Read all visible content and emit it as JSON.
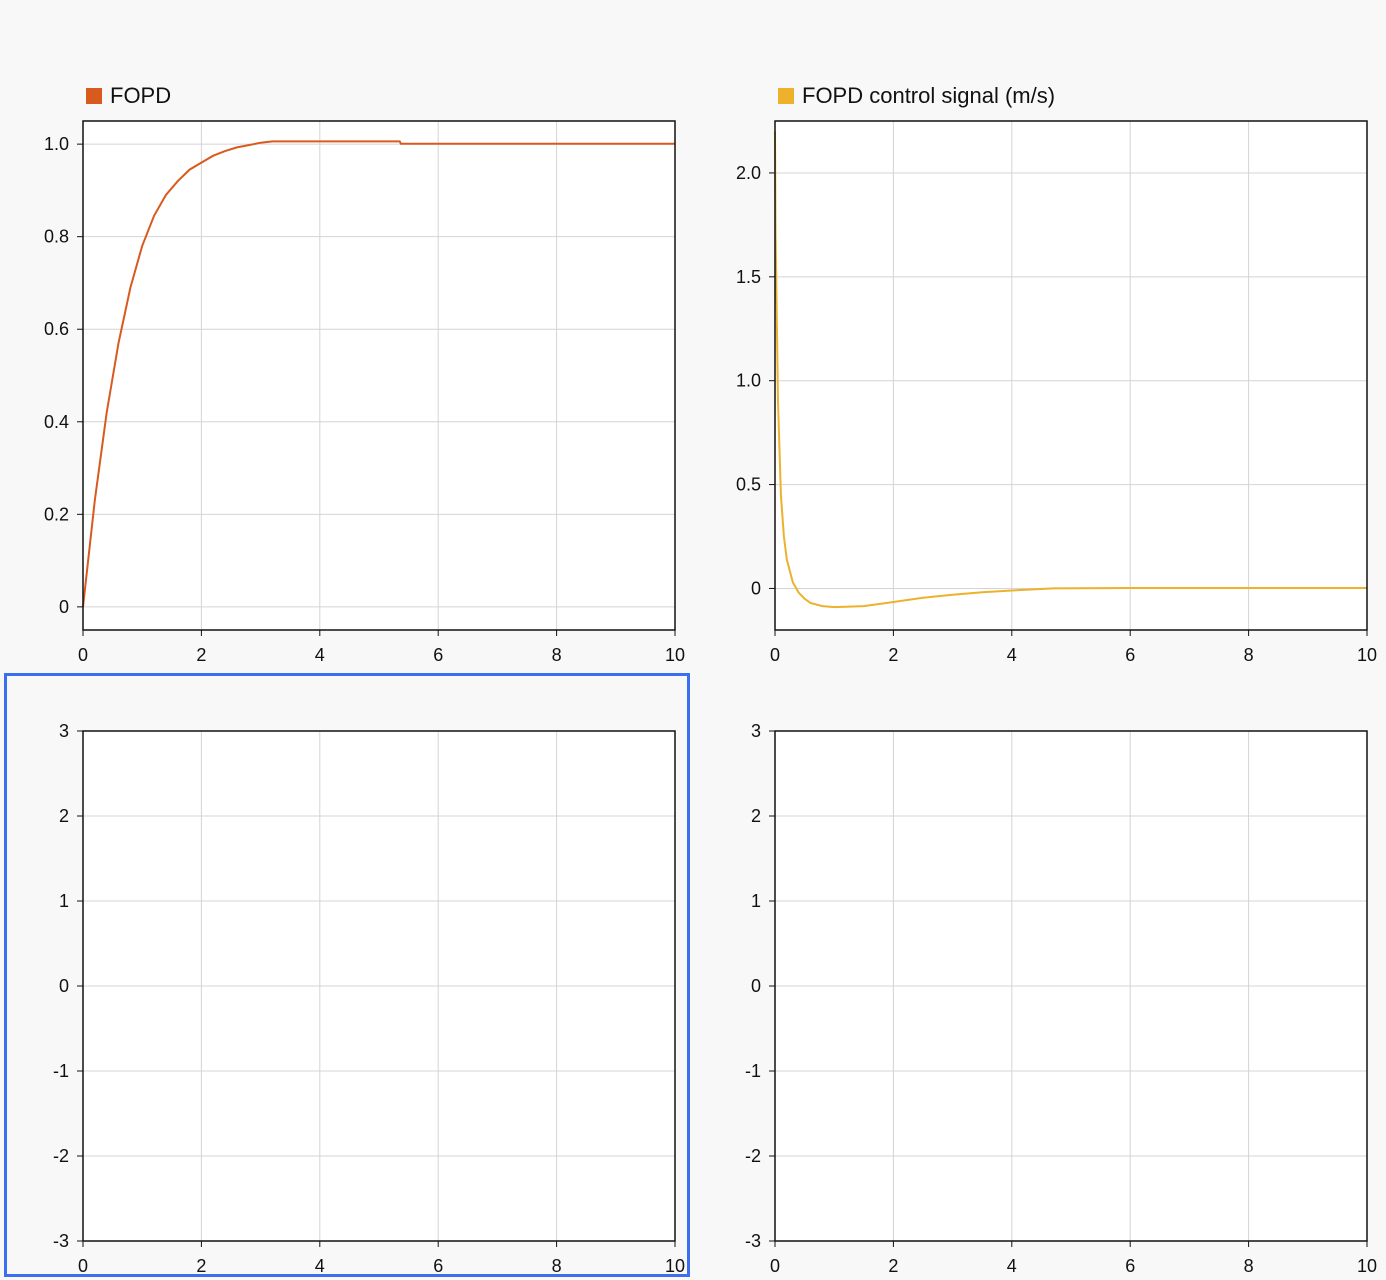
{
  "colors": {
    "background": "#f8f8f8",
    "grid": "#d4d4d4",
    "axis": "#111111",
    "selection": "#3b6ff0"
  },
  "chart_data": [
    {
      "type": "line",
      "title": "",
      "legend": [
        {
          "name": "FOPD",
          "color": "#d95a1e"
        }
      ],
      "xlim": [
        0,
        10
      ],
      "ylim": [
        -0.05,
        1.05
      ],
      "xticks": [
        0,
        2,
        4,
        6,
        8,
        10
      ],
      "xtick_labels": [
        "0",
        "2",
        "4",
        "6",
        "8",
        "10"
      ],
      "yticks": [
        0,
        0.2,
        0.4,
        0.6,
        0.8,
        1.0
      ],
      "ytick_labels": [
        "0",
        "0.2",
        "0.4",
        "0.6",
        "0.8",
        "1.0"
      ],
      "grid": true,
      "series": [
        {
          "name": "FOPD",
          "color": "#d95a1e",
          "x": [
            0,
            0.2,
            0.4,
            0.6,
            0.8,
            1.0,
            1.2,
            1.4,
            1.6,
            1.8,
            2.0,
            2.2,
            2.4,
            2.6,
            2.8,
            3.0,
            3.2,
            4.0,
            5.35,
            5.37,
            10
          ],
          "y": [
            0,
            0.23,
            0.42,
            0.57,
            0.69,
            0.78,
            0.845,
            0.89,
            0.92,
            0.945,
            0.96,
            0.975,
            0.985,
            0.993,
            0.998,
            1.003,
            1.006,
            1.006,
            1.006,
            1.001,
            1.001
          ]
        }
      ]
    },
    {
      "type": "line",
      "title": "",
      "legend": [
        {
          "name": "FOPD control signal (m/s)",
          "color": "#ecb22c"
        }
      ],
      "xlim": [
        0,
        10
      ],
      "ylim": [
        -0.2,
        2.25
      ],
      "xticks": [
        0,
        2,
        4,
        6,
        8,
        10
      ],
      "xtick_labels": [
        "0",
        "2",
        "4",
        "6",
        "8",
        "10"
      ],
      "yticks": [
        0,
        0.5,
        1.0,
        1.5,
        2.0
      ],
      "ytick_labels": [
        "0",
        "0.5",
        "1.0",
        "1.5",
        "2.0"
      ],
      "grid": true,
      "series": [
        {
          "name": "FOPD control signal (m/s)",
          "color": "#ecb22c",
          "x": [
            0,
            0.01,
            0.05,
            0.1,
            0.15,
            0.2,
            0.3,
            0.4,
            0.5,
            0.6,
            0.8,
            1.0,
            1.5,
            2.0,
            2.5,
            3.0,
            3.5,
            4.0,
            4.7,
            6.0,
            8.0,
            10.0
          ],
          "y": [
            2.2,
            1.7,
            0.9,
            0.45,
            0.25,
            0.14,
            0.03,
            -0.02,
            -0.05,
            -0.07,
            -0.085,
            -0.09,
            -0.085,
            -0.065,
            -0.045,
            -0.03,
            -0.018,
            -0.01,
            0.0,
            0.002,
            0.002,
            0.002
          ]
        }
      ]
    },
    {
      "type": "line",
      "title": "",
      "selected": true,
      "xlim": [
        0,
        10
      ],
      "ylim": [
        -3,
        3
      ],
      "xticks": [
        0,
        2,
        4,
        6,
        8,
        10
      ],
      "xtick_labels": [
        "0",
        "2",
        "4",
        "6",
        "8",
        "10"
      ],
      "yticks": [
        -3,
        -2,
        -1,
        0,
        1,
        2,
        3
      ],
      "ytick_labels": [
        "-3",
        "-2",
        "-1",
        "0",
        "1",
        "2",
        "3"
      ],
      "grid": true,
      "series": []
    },
    {
      "type": "line",
      "title": "",
      "xlim": [
        0,
        10
      ],
      "ylim": [
        -3,
        3
      ],
      "xticks": [
        0,
        2,
        4,
        6,
        8,
        10
      ],
      "xtick_labels": [
        "0",
        "2",
        "4",
        "6",
        "8",
        "10"
      ],
      "yticks": [
        -3,
        -2,
        -1,
        0,
        1,
        2,
        3
      ],
      "ytick_labels": [
        "-3",
        "-2",
        "-1",
        "0",
        "1",
        "2",
        "3"
      ],
      "grid": true,
      "series": []
    }
  ]
}
